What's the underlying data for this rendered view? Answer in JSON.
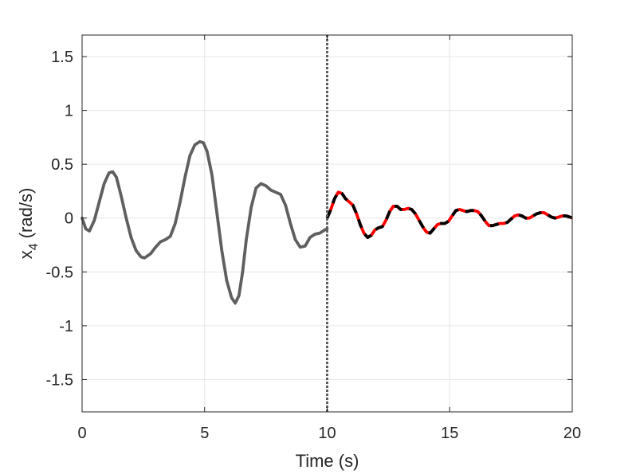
{
  "chart_data": {
    "type": "line",
    "title": "",
    "xlabel": "Time (s)",
    "ylabel_main": "x",
    "ylabel_sub": "4",
    "ylabel_unit": " (rad/s)",
    "xlim": [
      0,
      20
    ],
    "ylim": [
      -1.8,
      1.7
    ],
    "xticks": [
      0,
      5,
      10,
      15,
      20
    ],
    "xtick_labels": [
      "0",
      "5",
      "10",
      "15",
      "20"
    ],
    "yticks": [
      -1.5,
      -1,
      -0.5,
      0,
      0.5,
      1,
      1.5
    ],
    "ytick_labels": [
      "-1.5",
      "-1",
      "-0.5",
      "0",
      "0.5",
      "1",
      "1.5"
    ],
    "grid": true,
    "vline_x": 10,
    "colors": {
      "measured": "#5f5f5f",
      "prediction_dark": "#000000",
      "prediction_red": "#ff0000",
      "vline": "#5f5f5f",
      "grid": "#e6e6e6",
      "axis": "#262626"
    },
    "series": [
      {
        "style": "solid-gray",
        "x": [
          0,
          0.15,
          0.3,
          0.5,
          0.7,
          0.9,
          1.1,
          1.25,
          1.4,
          1.6,
          1.8,
          2.0,
          2.2,
          2.4,
          2.55,
          2.8,
          3.0,
          3.2,
          3.4,
          3.6,
          3.8,
          4.0,
          4.2,
          4.4,
          4.6,
          4.8,
          4.95,
          5.1,
          5.3,
          5.5,
          5.7,
          5.9,
          6.1,
          6.25,
          6.4,
          6.55,
          6.7,
          6.9,
          7.1,
          7.3,
          7.5,
          7.7,
          7.9,
          8.1,
          8.3,
          8.5,
          8.7,
          8.9,
          9.1,
          9.3,
          9.5,
          9.7,
          9.9,
          10.0
        ],
        "y": [
          0.0,
          -0.1,
          -0.12,
          -0.02,
          0.15,
          0.32,
          0.42,
          0.43,
          0.38,
          0.2,
          0.0,
          -0.18,
          -0.3,
          -0.36,
          -0.37,
          -0.33,
          -0.27,
          -0.22,
          -0.2,
          -0.17,
          -0.05,
          0.15,
          0.38,
          0.58,
          0.68,
          0.71,
          0.7,
          0.62,
          0.4,
          0.05,
          -0.3,
          -0.58,
          -0.74,
          -0.79,
          -0.72,
          -0.5,
          -0.2,
          0.1,
          0.28,
          0.32,
          0.3,
          0.26,
          0.24,
          0.22,
          0.12,
          -0.05,
          -0.2,
          -0.27,
          -0.26,
          -0.18,
          -0.15,
          -0.14,
          -0.11,
          -0.1
        ]
      },
      {
        "style": "dashed-black-red",
        "x": [
          10.0,
          10.15,
          10.3,
          10.45,
          10.6,
          10.75,
          10.9,
          11.05,
          11.2,
          11.35,
          11.5,
          11.65,
          11.8,
          11.95,
          12.1,
          12.25,
          12.4,
          12.55,
          12.7,
          12.85,
          13.0,
          13.15,
          13.3,
          13.45,
          13.6,
          13.75,
          13.9,
          14.05,
          14.2,
          14.35,
          14.5,
          14.65,
          14.8,
          14.95,
          15.1,
          15.25,
          15.4,
          15.55,
          15.7,
          15.85,
          16.0,
          16.15,
          16.3,
          16.45,
          16.6,
          16.75,
          16.9,
          17.05,
          17.2,
          17.35,
          17.5,
          17.65,
          17.8,
          17.95,
          18.1,
          18.25,
          18.4,
          18.55,
          18.7,
          18.85,
          19.0,
          19.15,
          19.3,
          19.45,
          19.6,
          19.75,
          19.9,
          20.0
        ],
        "y": [
          0.0,
          0.08,
          0.18,
          0.24,
          0.23,
          0.18,
          0.15,
          0.12,
          0.04,
          -0.06,
          -0.14,
          -0.18,
          -0.16,
          -0.11,
          -0.09,
          -0.08,
          -0.02,
          0.06,
          0.11,
          0.11,
          0.08,
          0.08,
          0.09,
          0.08,
          0.04,
          -0.02,
          -0.08,
          -0.13,
          -0.14,
          -0.1,
          -0.06,
          -0.05,
          -0.05,
          -0.03,
          0.02,
          0.07,
          0.08,
          0.07,
          0.06,
          0.07,
          0.07,
          0.06,
          0.02,
          -0.03,
          -0.07,
          -0.07,
          -0.06,
          -0.05,
          -0.05,
          -0.04,
          -0.01,
          0.02,
          0.03,
          0.02,
          0.0,
          0.0,
          0.02,
          0.04,
          0.05,
          0.05,
          0.03,
          0.01,
          0.0,
          0.01,
          0.02,
          0.02,
          0.01,
          0.0
        ]
      }
    ]
  }
}
